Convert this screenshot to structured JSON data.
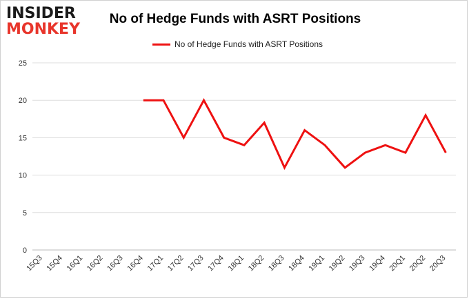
{
  "brand": {
    "line1": "INSIDER",
    "line2": "MONKEY"
  },
  "chart_data": {
    "type": "line",
    "title": "No of Hedge Funds with ASRT Positions",
    "xlabel": "",
    "ylabel": "",
    "categories": [
      "15Q3",
      "15Q4",
      "16Q1",
      "16Q2",
      "16Q3",
      "16Q4",
      "17Q1",
      "17Q2",
      "17Q3",
      "17Q4",
      "18Q1",
      "18Q2",
      "18Q3",
      "18Q4",
      "19Q1",
      "19Q2",
      "19Q3",
      "19Q4",
      "20Q1",
      "20Q2",
      "20Q3"
    ],
    "series": [
      {
        "name": "No of Hedge Funds with ASRT Positions",
        "values": [
          null,
          null,
          null,
          null,
          null,
          20,
          20,
          15,
          20,
          15,
          14,
          17,
          11,
          16,
          14,
          11,
          13,
          14,
          13,
          18,
          13
        ]
      }
    ],
    "ylim": [
      0,
      25
    ],
    "yticks": [
      0,
      5,
      10,
      15,
      20,
      25
    ],
    "grid": true,
    "legend_position": "top-center",
    "line_color": "#ee1111"
  }
}
